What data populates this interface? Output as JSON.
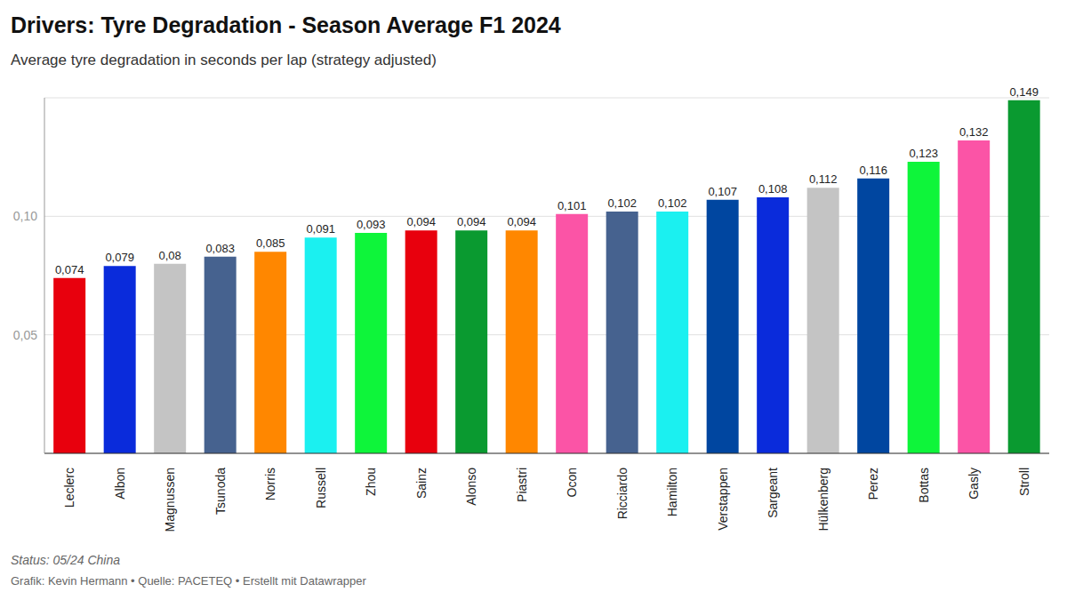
{
  "chart_data": {
    "type": "bar",
    "title": "Drivers: Tyre Degradation - Season Average F1 2024",
    "subtitle": "Average tyre degradation in seconds per lap (strategy adjusted)",
    "annotations": [
      "Status: 05/24 China",
      "Grafik: Kevin Hermann • Quelle: PACETEQ • Erstellt mit Datawrapper"
    ],
    "categories": [
      "Leclerc",
      "Albon",
      "Magnussen",
      "Tsunoda",
      "Norris",
      "Russell",
      "Zhou",
      "Sainz",
      "Alonso",
      "Piastri",
      "Ocon",
      "Ricciardo",
      "Hamilton",
      "Verstappen",
      "Sargeant",
      "Hülkenberg",
      "Perez",
      "Bottas",
      "Gasly",
      "Stroll"
    ],
    "values": [
      0.074,
      0.079,
      0.08,
      0.083,
      0.085,
      0.091,
      0.093,
      0.094,
      0.094,
      0.094,
      0.101,
      0.102,
      0.102,
      0.107,
      0.108,
      0.112,
      0.116,
      0.123,
      0.132,
      0.149
    ],
    "value_labels": [
      "0,074",
      "0,079",
      "0,08",
      "0,083",
      "0,085",
      "0,091",
      "0,093",
      "0,094",
      "0,094",
      "0,094",
      "0,101",
      "0,102",
      "0,102",
      "0,107",
      "0,108",
      "0,112",
      "0,116",
      "0,123",
      "0,132",
      "0,149"
    ],
    "colors": [
      "#e8000d",
      "#0a2bdb",
      "#c4c4c4",
      "#46628f",
      "#ff8700",
      "#1bf0f0",
      "#0ef53a",
      "#e8000d",
      "#0a9a30",
      "#ff8700",
      "#fb54a6",
      "#46628f",
      "#1bf0f0",
      "#0046a0",
      "#0a2bdb",
      "#c4c4c4",
      "#0046a0",
      "#0ef53a",
      "#fb54a6",
      "#0a9a30"
    ],
    "ylim": [
      0,
      0.15
    ],
    "yticks": [
      {
        "value": 0.05,
        "label": "0,05"
      },
      {
        "value": 0.1,
        "label": "0,10"
      }
    ],
    "grid": true,
    "data_labels": true
  }
}
